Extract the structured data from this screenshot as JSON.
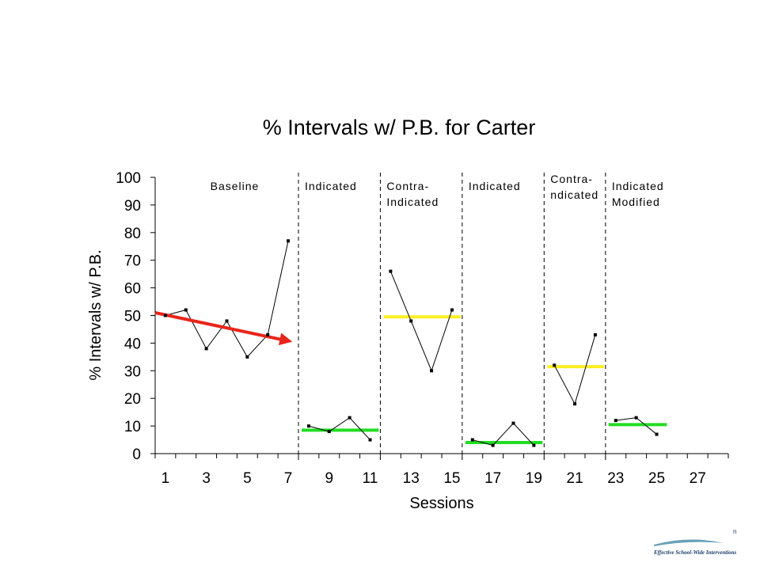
{
  "chart_data": {
    "type": "line",
    "title": "% Intervals w/ P.B. for Carter",
    "xlabel": "Sessions",
    "ylabel": "% Intervals w/ P.B.",
    "xlim": [
      0.5,
      28.5
    ],
    "ylim": [
      0,
      100
    ],
    "x_tick_labels": [
      "1",
      "3",
      "5",
      "7",
      "9",
      "11",
      "13",
      "15",
      "17",
      "19",
      "21",
      "23",
      "25",
      "27"
    ],
    "y_tick_labels": [
      "0",
      "10",
      "20",
      "30",
      "40",
      "50",
      "60",
      "70",
      "80",
      "90",
      "100"
    ],
    "grid": false,
    "phase_boundaries": [
      7.5,
      11.5,
      15.5,
      19.5,
      22.5
    ],
    "phases": [
      {
        "label": [
          "Baseline"
        ],
        "x": [
          1,
          2,
          3,
          4,
          5,
          6,
          7
        ],
        "y": [
          50,
          52,
          38,
          48,
          35,
          43,
          77
        ]
      },
      {
        "label": [
          "Indicated"
        ],
        "x": [
          8,
          9,
          10,
          11
        ],
        "y": [
          10,
          8,
          13,
          5
        ],
        "mean_line": 8.5,
        "mean_color": "#22dd22"
      },
      {
        "label": [
          "Contra-",
          "Indicated"
        ],
        "x": [
          12,
          13,
          14,
          15
        ],
        "y": [
          66,
          48,
          30,
          52
        ],
        "mean_line": 49.5,
        "mean_color": "#ffee22"
      },
      {
        "label": [
          "Indicated"
        ],
        "x": [
          16,
          17,
          18,
          19
        ],
        "y": [
          5,
          3,
          11,
          3
        ],
        "mean_line": 4,
        "mean_color": "#22dd22"
      },
      {
        "label": [
          "Contra-",
          "ndicated"
        ],
        "x": [
          20,
          21,
          22
        ],
        "y": [
          32,
          18,
          43
        ],
        "mean_line": 31.5,
        "mean_color": "#ffee22"
      },
      {
        "label": [
          "Indicated",
          "Modified"
        ],
        "x": [
          23,
          24,
          25
        ],
        "y": [
          12,
          13,
          7
        ],
        "mean_line": 10.5,
        "mean_color": "#22dd22"
      }
    ],
    "trend_arrow": {
      "from": [
        0.5,
        51
      ],
      "to": [
        7.2,
        40.5
      ],
      "color": "#e8251a"
    }
  },
  "footer": {
    "logo_text": "Effective School-Wide Interventions"
  }
}
